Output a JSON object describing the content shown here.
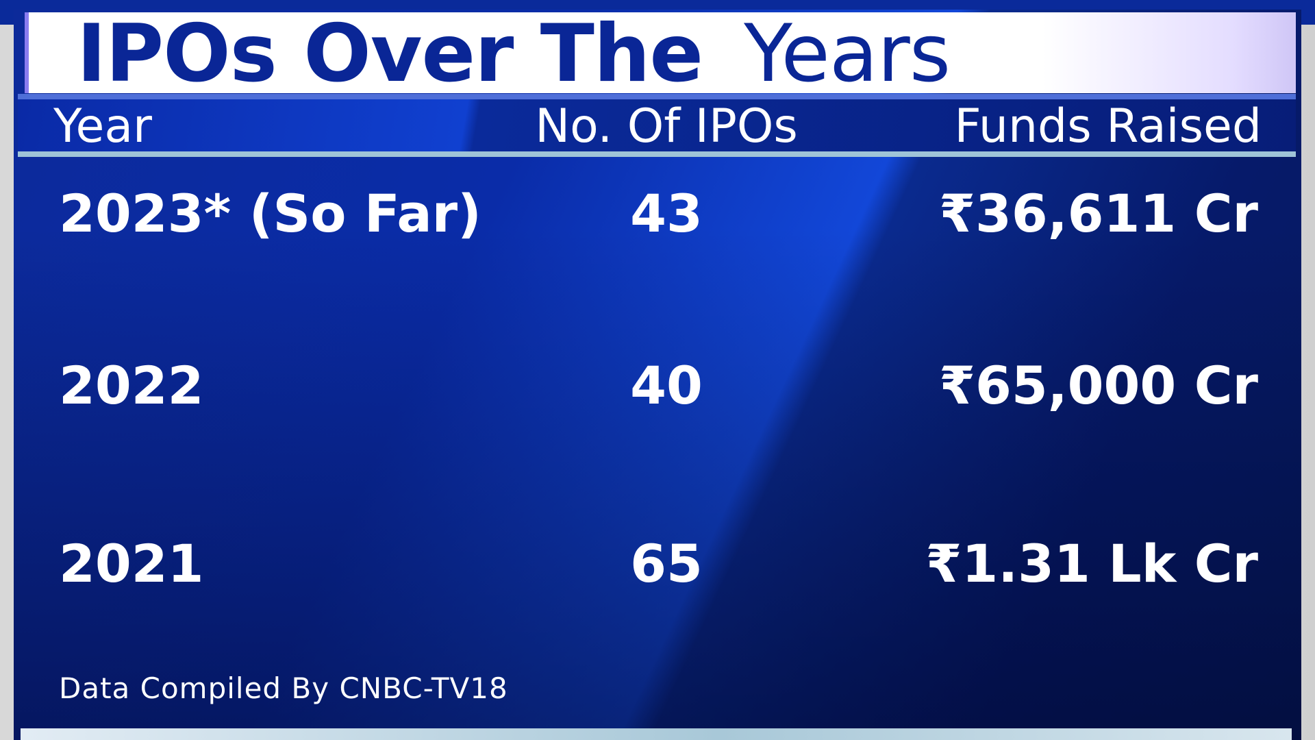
{
  "title": {
    "bold": "IPOs Over The",
    "light": "Years"
  },
  "table": {
    "headers": [
      "Year",
      "No. Of IPOs",
      "Funds Raised"
    ],
    "rows": [
      {
        "year": "2023* (So Far)",
        "ipos": "43",
        "funds": "₹36,611 Cr"
      },
      {
        "year": "2022",
        "ipos": "40",
        "funds": "₹65,000 Cr"
      },
      {
        "year": "2021",
        "ipos": "65",
        "funds": "₹1.31 Lk Cr"
      }
    ]
  },
  "footer": "Data Compiled By CNBC-TV18",
  "colors": {
    "title_text": "#0a2696",
    "panel": "#0a2a9a",
    "text": "#ffffff"
  }
}
